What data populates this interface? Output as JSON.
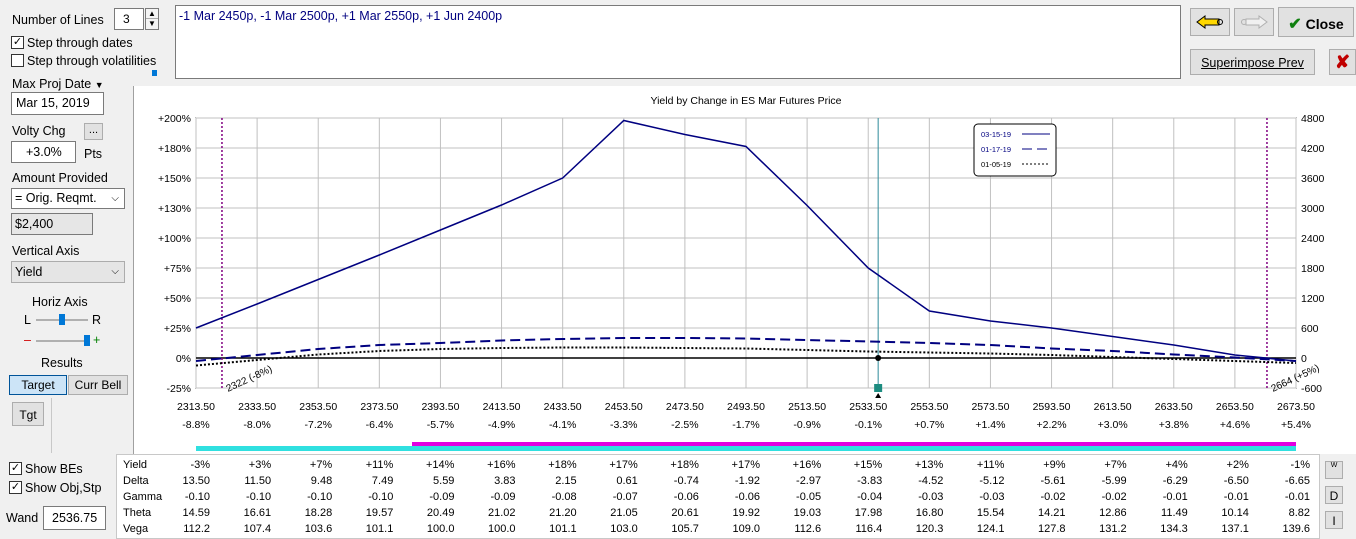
{
  "controls": {
    "number_of_lines_label": "Number of Lines",
    "number_of_lines_value": "3",
    "step_dates_label": "Step through dates",
    "step_vols_label": "Step through volatilities",
    "max_proj_date_label": "Max Proj Date",
    "max_proj_date_value": "Mar 15, 2019",
    "volty_chg_label": "Volty Chg",
    "volty_btn_label": "...",
    "volty_value": "+3.0%",
    "volty_unit": "Pts",
    "amount_provided_label": "Amount Provided",
    "amount_provided_value": "= Orig. Reqmt.",
    "amount_value": "$2,400",
    "vertical_axis_label": "Vertical Axis",
    "vertical_axis_value": "Yield",
    "horiz_axis_label": "Horiz Axis",
    "horiz_l": "L",
    "horiz_r": "R",
    "minus": "–",
    "plus": "+",
    "results_label": "Results",
    "target_btn": "Target",
    "curr_bell_btn": "Curr Bell",
    "tgt_btn": "Tgt",
    "show_bes_label": "Show BEs",
    "show_obj_label": "Show Obj,Stp",
    "wand_label": "Wand",
    "wand_value": "2536.75"
  },
  "position_text": "-1 Mar 2450p, -1 Mar 2500p, +1 Mar 2550p, +1 Jun 2400p",
  "toolbar": {
    "close_label": "Close",
    "superimpose_label": "Superimpose Prev"
  },
  "chart_data": {
    "type": "line",
    "title": "Yield by Change in ES Mar Futures Price",
    "x": [
      2313.5,
      2333.5,
      2353.5,
      2373.5,
      2393.5,
      2413.5,
      2433.5,
      2453.5,
      2473.5,
      2493.5,
      2513.5,
      2533.5,
      2553.5,
      2573.5,
      2593.5,
      2613.5,
      2633.5,
      2653.5,
      2673.5
    ],
    "x_tick_labels": [
      "2313.50",
      "2333.50",
      "2353.50",
      "2373.50",
      "2393.50",
      "2413.50",
      "2433.50",
      "2453.50",
      "2473.50",
      "2493.50",
      "2513.50",
      "2533.50",
      "2553.50",
      "2573.50",
      "2593.50",
      "2613.50",
      "2633.50",
      "2653.50",
      "2673.50"
    ],
    "x_pct_labels": [
      "-8.8%",
      "-8.0%",
      "-7.2%",
      "-6.4%",
      "-5.7%",
      "-4.9%",
      "-4.1%",
      "-3.3%",
      "-2.5%",
      "-1.7%",
      "-0.9%",
      "-0.1%",
      "+0.7%",
      "+1.4%",
      "+2.2%",
      "+3.0%",
      "+3.8%",
      "+4.6%",
      "+5.4%"
    ],
    "y_left_labels": [
      "+200%",
      "+180%",
      "+150%",
      "+130%",
      "+100%",
      "+75%",
      "+50%",
      "+25%",
      "0%",
      "-25%"
    ],
    "y_right_labels": [
      "4800",
      "4200",
      "3600",
      "3000",
      "2400",
      "1800",
      "1200",
      "600",
      "0",
      "-600"
    ],
    "ylim": [
      -600,
      4800
    ],
    "series": [
      {
        "name": "03-15-19",
        "style": "solid",
        "values": [
          600,
          1080,
          1570,
          2060,
          2560,
          3060,
          3600,
          4750,
          4470,
          4230,
          3050,
          1800,
          940,
          740,
          600,
          430,
          260,
          60,
          -60
        ]
      },
      {
        "name": "01-17-19",
        "style": "dashed",
        "values": [
          -60,
          60,
          180,
          260,
          300,
          350,
          380,
          400,
          400,
          390,
          360,
          330,
          300,
          260,
          190,
          140,
          70,
          10,
          -60
        ]
      },
      {
        "name": "01-05-19",
        "style": "dotted",
        "values": [
          -150,
          -40,
          70,
          140,
          180,
          200,
          210,
          210,
          200,
          190,
          160,
          130,
          110,
          90,
          60,
          20,
          -20,
          -60,
          -100
        ]
      }
    ],
    "breakevens": [
      {
        "x": 2322,
        "label": "2322 (-8%)"
      },
      {
        "x": 2664,
        "label": "2664 (+5%)"
      }
    ],
    "current_price": 2536.75,
    "legend_position": "top-right",
    "colors": {
      "line": "#000080",
      "be_line": "#800080",
      "cursor": "#2e8b9a",
      "marker": "#1c8c80"
    }
  },
  "bars": {
    "magenta": "#e000e0",
    "cyan": "#30e0e0"
  },
  "table": {
    "rows": [
      {
        "label": "Yield",
        "values": [
          "-3%",
          "+3%",
          "+7%",
          "+11%",
          "+14%",
          "+16%",
          "+18%",
          "+17%",
          "+18%",
          "+17%",
          "+16%",
          "+15%",
          "+13%",
          "+11%",
          "+9%",
          "+7%",
          "+4%",
          "+2%",
          "-1%"
        ]
      },
      {
        "label": "Delta",
        "values": [
          "13.50",
          "11.50",
          "9.48",
          "7.49",
          "5.59",
          "3.83",
          "2.15",
          "0.61",
          "-0.74",
          "-1.92",
          "-2.97",
          "-3.83",
          "-4.52",
          "-5.12",
          "-5.61",
          "-5.99",
          "-6.29",
          "-6.50",
          "-6.65"
        ]
      },
      {
        "label": "Gamma",
        "values": [
          "-0.10",
          "-0.10",
          "-0.10",
          "-0.10",
          "-0.09",
          "-0.09",
          "-0.08",
          "-0.07",
          "-0.06",
          "-0.06",
          "-0.05",
          "-0.04",
          "-0.03",
          "-0.03",
          "-0.02",
          "-0.02",
          "-0.01",
          "-0.01",
          "-0.01"
        ]
      },
      {
        "label": "Theta",
        "values": [
          "14.59",
          "16.61",
          "18.28",
          "19.57",
          "20.49",
          "21.02",
          "21.20",
          "21.05",
          "20.61",
          "19.92",
          "19.03",
          "17.98",
          "16.80",
          "15.54",
          "14.21",
          "12.86",
          "11.49",
          "10.14",
          "8.82"
        ]
      },
      {
        "label": "Vega",
        "values": [
          "112.2",
          "107.4",
          "103.6",
          "101.1",
          "100.0",
          "100.0",
          "101.1",
          "103.0",
          "105.7",
          "109.0",
          "112.6",
          "116.4",
          "120.3",
          "124.1",
          "127.8",
          "131.2",
          "134.3",
          "137.1",
          "139.6"
        ]
      }
    ],
    "side_buttons": [
      "W",
      "D",
      "I"
    ]
  }
}
